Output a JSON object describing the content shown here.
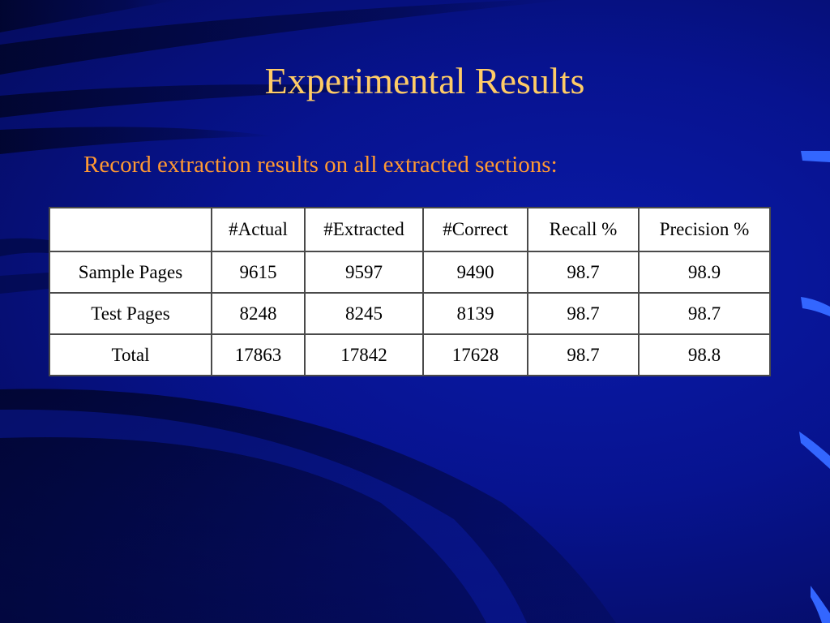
{
  "slide": {
    "title": "Experimental Results",
    "subtitle": "Record extraction results on all extracted sections:",
    "colors": {
      "background": "#06108a",
      "title": "#ffcc66",
      "subtitle": "#ff9933",
      "table_background": "#ffffff",
      "accent_marks": "#3366ff"
    }
  },
  "table": {
    "headers": [
      "",
      "#Actual",
      "#Extracted",
      "#Correct",
      "Recall %",
      "Precision %"
    ],
    "rows": [
      [
        "Sample Pages",
        "9615",
        "9597",
        "9490",
        "98.7",
        "98.9"
      ],
      [
        "Test Pages",
        "8248",
        "8245",
        "8139",
        "98.7",
        "98.7"
      ],
      [
        "Total",
        "17863",
        "17842",
        "17628",
        "98.7",
        "98.8"
      ]
    ]
  }
}
